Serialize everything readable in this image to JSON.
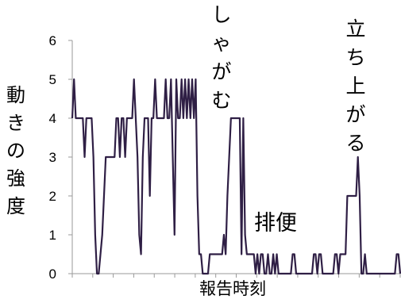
{
  "chart_data": {
    "type": "line",
    "xlabel": "報告時刻",
    "ylabel": "動きの強度",
    "ylim": [
      0,
      6
    ],
    "y_ticks": [
      "0",
      "1",
      "2",
      "3",
      "4",
      "5",
      "6"
    ],
    "grid": false,
    "line_color": "#2f1f45",
    "series": [
      {
        "values": [
          4,
          5,
          4,
          4,
          4,
          4,
          4,
          3,
          4,
          4,
          4,
          4,
          3,
          1,
          0,
          0,
          0.5,
          1,
          2,
          3,
          3,
          3,
          3,
          3,
          3,
          4,
          4,
          3,
          4,
          4,
          3,
          4,
          4,
          4,
          4,
          5,
          4,
          3,
          1,
          0.5,
          3,
          4,
          4,
          4,
          2,
          4,
          4,
          5,
          4,
          4,
          4,
          4,
          4,
          5,
          4,
          4,
          5,
          3,
          1,
          5,
          4,
          4,
          5,
          4,
          5,
          4,
          5,
          4,
          5,
          4,
          5,
          2,
          0.5,
          0.5,
          0,
          0,
          0,
          0,
          0.5,
          0.5,
          0.5,
          0.5,
          0.5,
          0.5,
          0.5,
          0.5,
          1,
          0.5,
          2,
          3,
          4,
          4,
          4,
          4,
          4,
          4,
          0.5,
          4,
          1,
          0.5,
          0.5,
          0.5,
          0.5,
          0.5,
          0,
          0.5,
          0,
          0.5,
          0.5,
          0,
          0,
          0.5,
          0,
          0,
          0.5,
          0,
          0.5,
          0,
          0,
          0,
          0,
          0,
          0,
          0,
          0,
          0.5,
          0.5,
          0,
          0,
          0,
          0,
          0,
          0,
          0,
          0,
          0,
          0,
          0.5,
          0.5,
          0,
          0.5,
          0.5,
          0,
          0,
          0,
          0,
          0,
          0,
          0,
          0.5,
          0.5,
          0,
          0.5,
          0.5,
          0.5,
          0.5,
          2,
          2,
          2,
          2,
          2,
          2,
          3,
          2,
          0,
          0,
          0.5,
          0,
          0,
          0,
          0,
          0,
          0,
          0,
          0,
          0,
          0,
          0,
          0,
          0,
          0,
          0,
          0,
          0,
          0.5,
          0.5,
          0
        ]
      }
    ],
    "annotations": [
      {
        "text": "しゃがむ",
        "orientation": "vertical"
      },
      {
        "text": "立ち上がる",
        "orientation": "vertical"
      },
      {
        "text": "排便",
        "orientation": "horizontal"
      }
    ]
  }
}
